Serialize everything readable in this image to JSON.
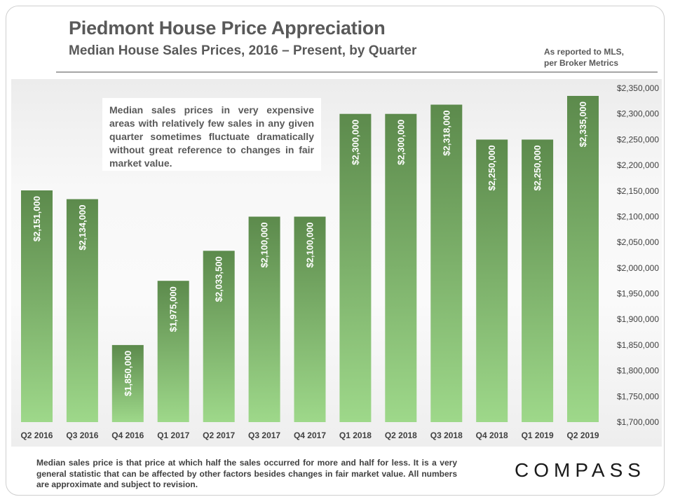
{
  "header": {
    "title": "Piedmont House Price Appreciation",
    "subtitle": "Median House Sales Prices, 2016 – Present, by Quarter",
    "source_line1": "As reported to MLS,",
    "source_line2": "per Broker Metrics"
  },
  "note": "Median sales prices in very expensive areas with relatively few sales in any given quarter sometimes fluctuate dramatically without great reference to changes in fair market value.",
  "footnote": "Median sales price is that price at which half the sales occurred for more and half for less. It is a very general statistic that can be affected by other factors besides changes in fair market value. All numbers are approximate and subject to revision.",
  "logo": "COMPASS",
  "colors": {
    "bar_top": "#5c8a4c",
    "bar_bottom": "#9ed88a",
    "label": "#ffffff"
  },
  "chart_data": {
    "type": "bar",
    "title": "Piedmont House Price Appreciation",
    "subtitle": "Median House Sales Prices, 2016 – Present, by Quarter",
    "categories": [
      "Q2 2016",
      "Q3 2016",
      "Q4 2016",
      "Q1 2017",
      "Q2 2017",
      "Q3 2017",
      "Q4 2017",
      "Q1 2018",
      "Q2 2018",
      "Q3 2018",
      "Q4 2018",
      "Q1 2019",
      "Q2 2019"
    ],
    "values": [
      2151000,
      2134000,
      1850000,
      1975000,
      2033500,
      2100000,
      2100000,
      2300000,
      2300000,
      2318000,
      2250000,
      2250000,
      2335000
    ],
    "value_labels": [
      "$2,151,000",
      "$2,134,000",
      "$1,850,000",
      "$1,975,000",
      "$2,033,500",
      "$2,100,000",
      "$2,100,000",
      "$2,300,000",
      "$2,300,000",
      "$2,318,000",
      "$2,250,000",
      "$2,250,000",
      "$2,335,000"
    ],
    "ylim": [
      1700000,
      2350000
    ],
    "yticks": [
      1700000,
      1750000,
      1800000,
      1850000,
      1900000,
      1950000,
      2000000,
      2050000,
      2100000,
      2150000,
      2200000,
      2250000,
      2300000,
      2350000
    ],
    "ytick_labels": [
      "$1,700,000",
      "$1,750,000",
      "$1,800,000",
      "$1,850,000",
      "$1,900,000",
      "$1,950,000",
      "$2,000,000",
      "$2,050,000",
      "$2,100,000",
      "$2,150,000",
      "$2,200,000",
      "$2,250,000",
      "$2,300,000",
      "$2,350,000"
    ],
    "yaxis_position": "right",
    "xlabel": "",
    "ylabel": "",
    "grid": false,
    "legend": "none"
  }
}
